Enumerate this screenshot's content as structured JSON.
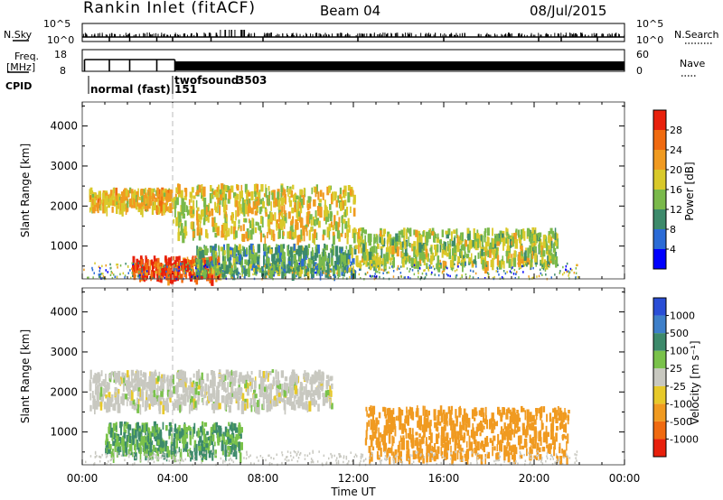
{
  "header": {
    "site": "Rankin Inlet (fitACF)",
    "beam": "Beam 04",
    "date": "08/Jul/2015"
  },
  "strips": {
    "nsky_label": "N.Sky",
    "nsky_ticks": [
      "10^5",
      "10^0"
    ],
    "nsearch_label": "N.Search",
    "nsearch_ticks": [
      "10^5",
      "10^0"
    ],
    "freq_label_1": "Freq.",
    "freq_label_2": "[MHz]",
    "freq_ticks": [
      "18",
      "8"
    ],
    "nave_label": "Nave",
    "nave_ticks": [
      "60",
      "0"
    ],
    "cpid_label": "CPID",
    "cpid_modes": [
      {
        "name": "normal (fast)",
        "id": "151"
      },
      {
        "name": "twofsound",
        "id": "3503"
      }
    ]
  },
  "chart_data": [
    {
      "type": "heatmap",
      "title": "",
      "xlabel": "",
      "ylabel": "Slant Range [km]",
      "y_ticks": [
        "1000",
        "2000",
        "3000",
        "4000"
      ],
      "ylim": [
        180,
        4600
      ],
      "colorbar_label": "Power [dB]",
      "colorbar_ticks": [
        "4",
        "8",
        "12",
        "16",
        "20",
        "24",
        "28"
      ],
      "colors": [
        "#0000ff",
        "#2b6bd6",
        "#3d8a6b",
        "#7ab94b",
        "#d9c92a",
        "#f09a20",
        "#f06a10",
        "#e8200c"
      ],
      "regions": [
        {
          "t": [
            0.3,
            4.0
          ],
          "r": [
            1900,
            2400
          ],
          "value": 20
        },
        {
          "t": [
            2.2,
            6.0
          ],
          "r": [
            200,
            700
          ],
          "value": 28
        },
        {
          "t": [
            4.0,
            12.0
          ],
          "r": [
            1200,
            2500
          ],
          "value": 18
        },
        {
          "t": [
            12.0,
            21.0
          ],
          "r": [
            500,
            1400
          ],
          "value": 16
        },
        {
          "t": [
            5.0,
            12.0
          ],
          "r": [
            300,
            1000
          ],
          "value": 12
        }
      ]
    },
    {
      "type": "heatmap",
      "title": "",
      "xlabel": "Time UT",
      "ylabel": "Slant Range [km]",
      "x_ticks": [
        "00:00",
        "04:00",
        "08:00",
        "12:00",
        "16:00",
        "20:00",
        "00:00"
      ],
      "y_ticks": [
        "1000",
        "2000",
        "3000",
        "4000"
      ],
      "ylim": [
        180,
        4600
      ],
      "colorbar_label": "Velocity [m s⁻¹]",
      "colorbar_ticks": [
        "1000",
        "500",
        "100",
        "25",
        "-25",
        "-100",
        "-500",
        "-1000"
      ],
      "colors": [
        "#2a4ed6",
        "#3e7fc9",
        "#3d8a6b",
        "#7ac24b",
        "#c8c8c0",
        "#e7c92a",
        "#f09a20",
        "#f06a10",
        "#e8200c"
      ],
      "regions": [
        {
          "t": [
            0.3,
            11.0
          ],
          "r": [
            1600,
            2500
          ],
          "value": 0
        },
        {
          "t": [
            1.0,
            7.0
          ],
          "r": [
            400,
            1200
          ],
          "value": 100
        },
        {
          "t": [
            12.5,
            21.5
          ],
          "r": [
            300,
            1600
          ],
          "value": -300
        }
      ]
    }
  ]
}
